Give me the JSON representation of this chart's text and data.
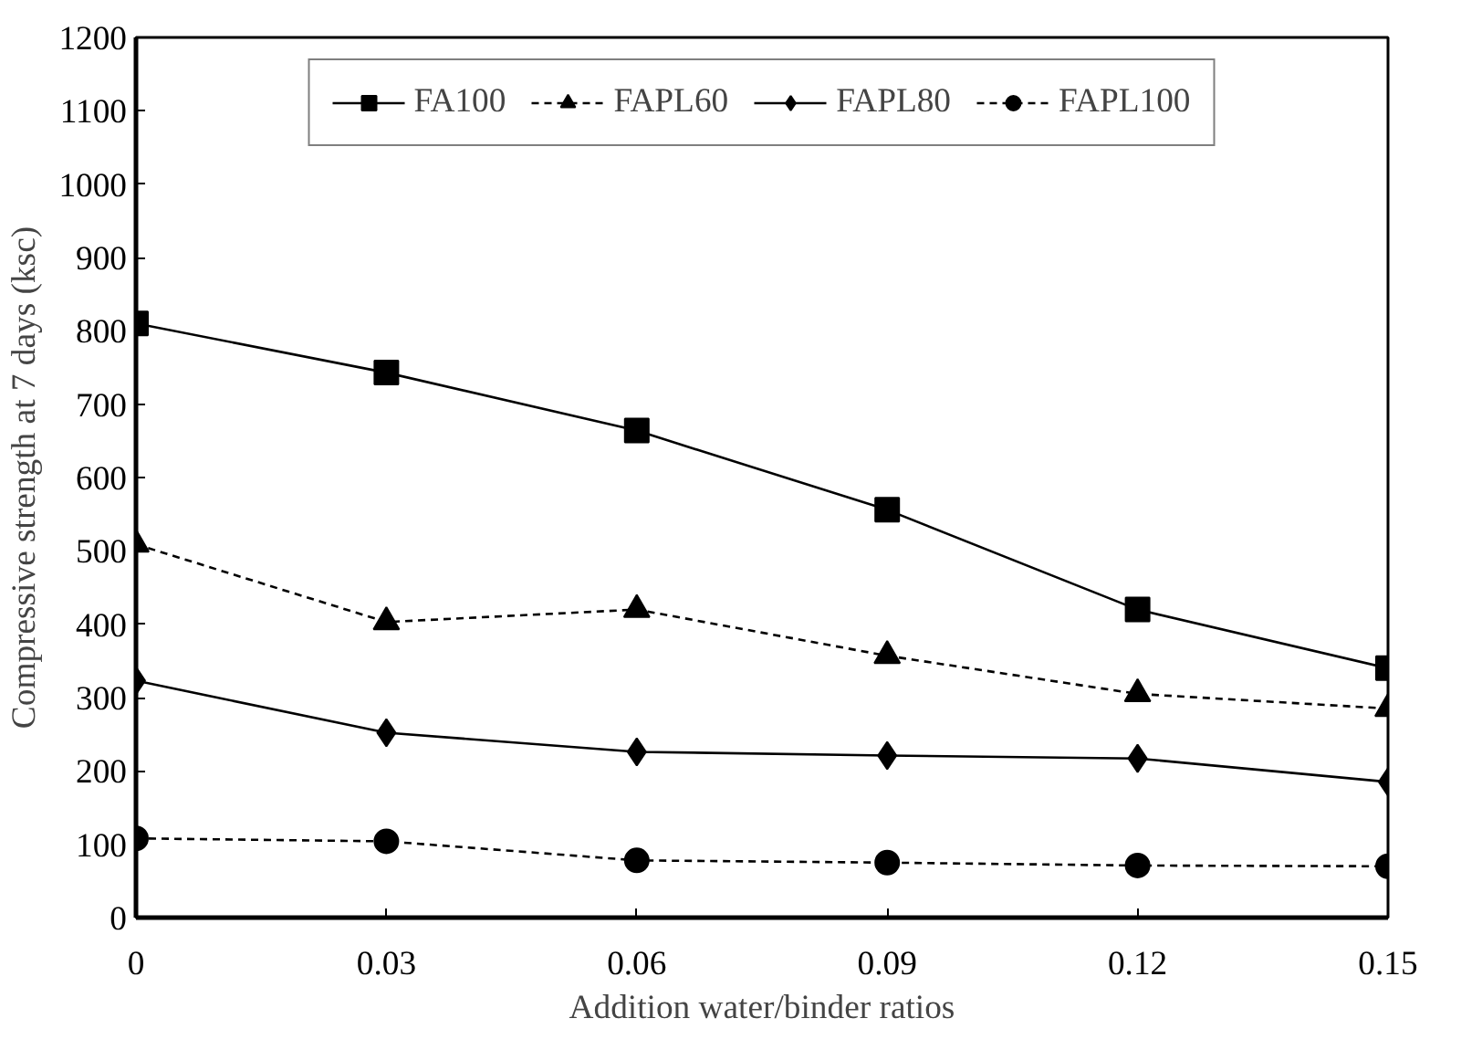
{
  "chart_data": {
    "type": "line",
    "xlabel": "Addition water/binder ratios",
    "ylabel": "Compressive strength at 7 days (ksc)",
    "x": [
      0,
      0.03,
      0.06,
      0.09,
      0.12,
      0.15
    ],
    "xlim": [
      0,
      0.15
    ],
    "xticks": [
      0,
      0.03,
      0.06,
      0.09,
      0.12,
      0.15
    ],
    "ylim": [
      0,
      1200
    ],
    "yticks": [
      0,
      100,
      200,
      300,
      400,
      500,
      600,
      700,
      800,
      900,
      1000,
      1100,
      1200
    ],
    "grid": false,
    "legend": "top",
    "series": [
      {
        "name": "FA100",
        "color": "#000000",
        "marker": "square",
        "line_style": "solid",
        "values": [
          810,
          743,
          664,
          556,
          420,
          340
        ]
      },
      {
        "name": "FAPL60",
        "color": "#000000",
        "marker": "triangle",
        "line_style": "dashed",
        "values": [
          509,
          403,
          420,
          357,
          305,
          285
        ]
      },
      {
        "name": "FAPL80",
        "color": "#000000",
        "marker": "diamond",
        "line_style": "solid",
        "values": [
          323,
          252,
          226,
          221,
          217,
          185
        ]
      },
      {
        "name": "FAPL100",
        "color": "#000000",
        "marker": "circle",
        "line_style": "dashed",
        "values": [
          108,
          104,
          78,
          75,
          71,
          70
        ]
      }
    ]
  }
}
